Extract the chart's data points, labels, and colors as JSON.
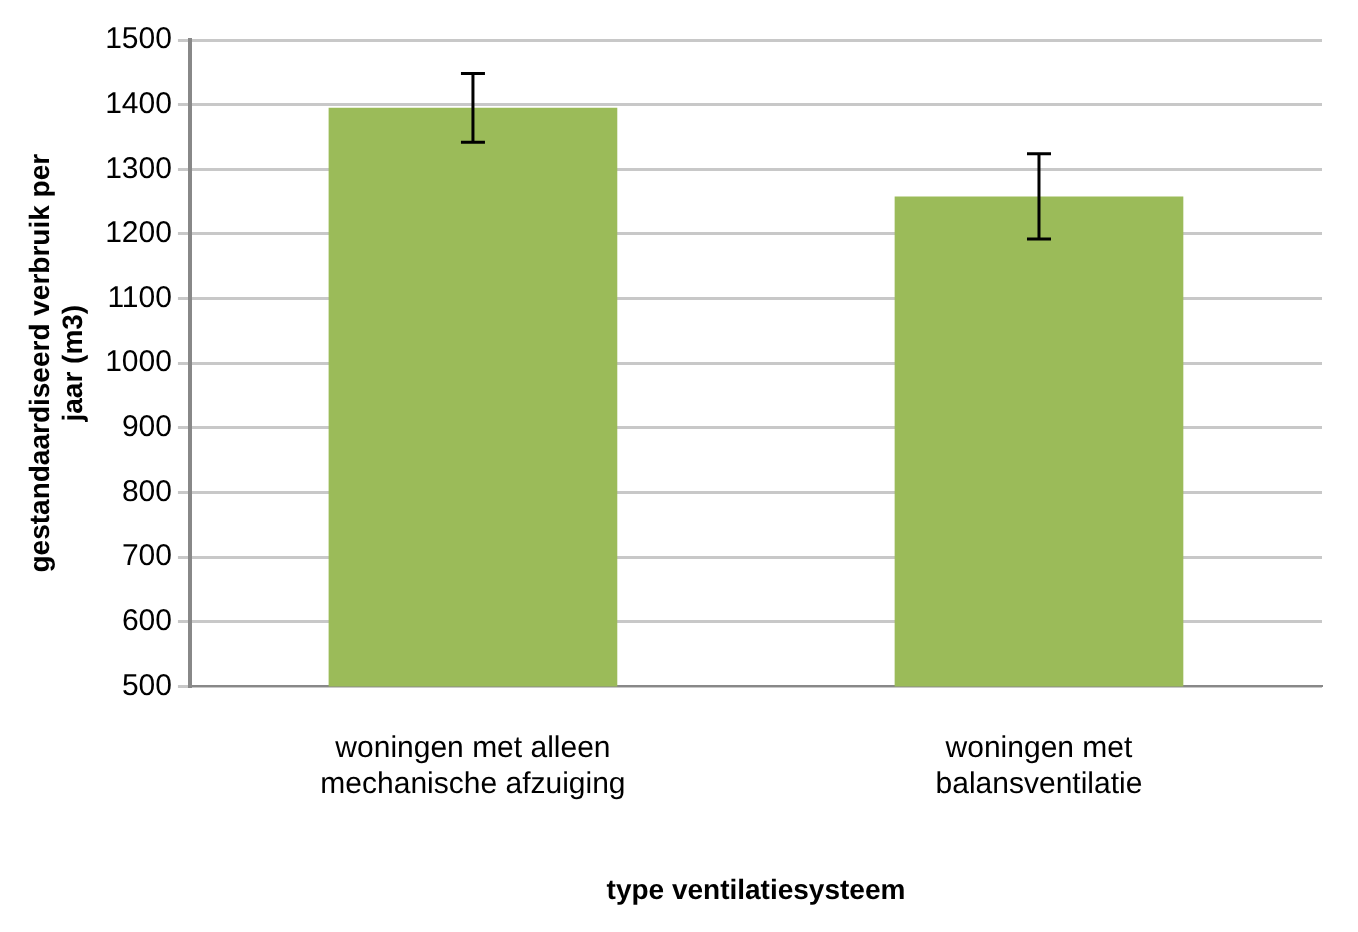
{
  "chart_data": {
    "type": "bar",
    "xlabel": "type ventilatiesysteem",
    "ylabel": "gestandaardiseerd verbruik per jaar (m3)",
    "categories": [
      "woningen met alleen mechanische afzuiging",
      "woningen met balansventilatie"
    ],
    "values": [
      1395,
      1258
    ],
    "errors": [
      53,
      66
    ],
    "color": "#9bbb59",
    "ylim": [
      500,
      1500
    ],
    "yticks": [
      500,
      600,
      700,
      800,
      900,
      1000,
      1100,
      1200,
      1300,
      1400,
      1500
    ],
    "grid": "y",
    "legend": false
  }
}
